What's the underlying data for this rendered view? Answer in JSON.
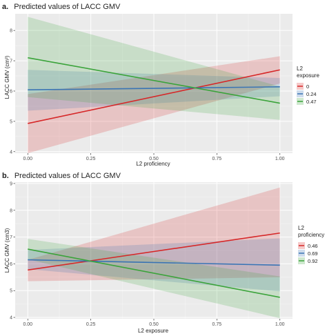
{
  "colors": {
    "panel_bg": "#ebebeb",
    "grid": "#ffffff",
    "series": [
      "#d62728",
      "#3a74b4",
      "#3aa33a"
    ]
  },
  "chart_data": [
    {
      "type": "line",
      "panel_tag": "a.",
      "title": "Predicted values of LACC GMV",
      "xlabel": "L2 proficiency",
      "ylabel": "LACC GMV (cm³)",
      "xlim": [
        0,
        1
      ],
      "ylim": [
        3.95,
        8.55
      ],
      "xticks": [
        "0.00",
        "0.25",
        "0.50",
        "0.75",
        "1.00"
      ],
      "xtick_values": [
        0,
        0.25,
        0.5,
        0.75,
        1
      ],
      "yticks": [
        "4",
        "5",
        "6",
        "7",
        "8"
      ],
      "ytick_values": [
        4,
        5,
        6,
        7,
        8
      ],
      "grid": true,
      "legend": {
        "title_line1": "L2",
        "title_line2": "exposure",
        "placement": "right"
      },
      "series": [
        {
          "name": "0",
          "x": [
            0,
            1
          ],
          "y": [
            4.93,
            6.7
          ],
          "lower": [
            3.95,
            6.25
          ],
          "upper": [
            5.9,
            7.15
          ]
        },
        {
          "name": "0.24",
          "x": [
            0,
            1
          ],
          "y": [
            6.04,
            6.14
          ],
          "lower": [
            5.35,
            5.83
          ],
          "upper": [
            6.7,
            6.43
          ]
        },
        {
          "name": "0.47",
          "x": [
            0,
            1
          ],
          "y": [
            7.1,
            5.6
          ],
          "lower": [
            5.8,
            5.05
          ],
          "upper": [
            8.45,
            6.15
          ]
        }
      ]
    },
    {
      "type": "line",
      "panel_tag": "b.",
      "title": "Predicted values of LACC GMV",
      "xlabel": "L2 exposure",
      "ylabel": "LACC GMV (cm3)",
      "xlim": [
        0,
        1
      ],
      "ylim": [
        3.95,
        9.05
      ],
      "xticks": [
        "0.00",
        "0.25",
        "0.50",
        "0.75",
        "1.00"
      ],
      "xtick_values": [
        0,
        0.25,
        0.5,
        0.75,
        1
      ],
      "yticks": [
        "4",
        "5",
        "6",
        "7",
        "8",
        "9"
      ],
      "ytick_values": [
        4,
        5,
        6,
        7,
        8,
        9
      ],
      "grid": true,
      "legend": {
        "title_line1": "L2",
        "title_line2": "proficiency",
        "placement": "right"
      },
      "series": [
        {
          "name": "0.46",
          "x": [
            0,
            1
          ],
          "y": [
            5.77,
            7.15
          ],
          "lower": [
            5.35,
            5.5
          ],
          "upper": [
            6.15,
            8.85
          ]
        },
        {
          "name": "0.69",
          "x": [
            0,
            1
          ],
          "y": [
            6.15,
            5.95
          ],
          "lower": [
            5.8,
            4.97
          ],
          "upper": [
            6.52,
            6.95
          ]
        },
        {
          "name": "0.92",
          "x": [
            0,
            1
          ],
          "y": [
            6.55,
            4.75
          ],
          "lower": [
            6.17,
            3.97
          ],
          "upper": [
            6.93,
            5.53
          ]
        }
      ]
    }
  ]
}
